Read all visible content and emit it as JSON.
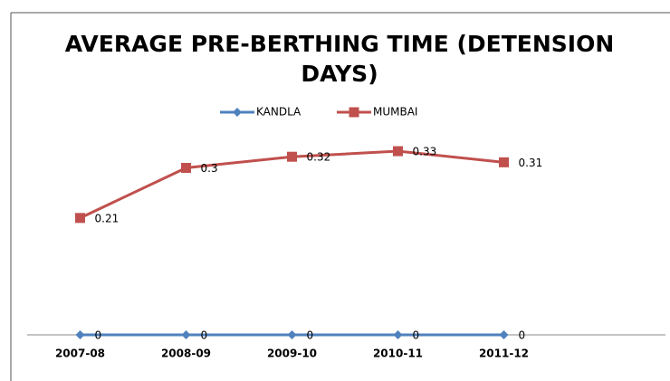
{
  "chart_data": {
    "type": "line",
    "title": "AVERAGE PRE-BERTHING TIME (DETENSION DAYS)",
    "categories": [
      "2007-08",
      "2008-09",
      "2009-10",
      "2010-11",
      "2011-12"
    ],
    "series": [
      {
        "name": "KANDLA",
        "color": "#4f81bd",
        "marker": "diamond",
        "values": [
          0,
          0,
          0,
          0,
          0
        ]
      },
      {
        "name": "MUMBAI",
        "color": "#c0504d",
        "marker": "square",
        "values": [
          0.21,
          0.3,
          0.32,
          0.33,
          0.31
        ]
      }
    ],
    "ylim": [
      0,
      0.4
    ],
    "legend": "top"
  }
}
